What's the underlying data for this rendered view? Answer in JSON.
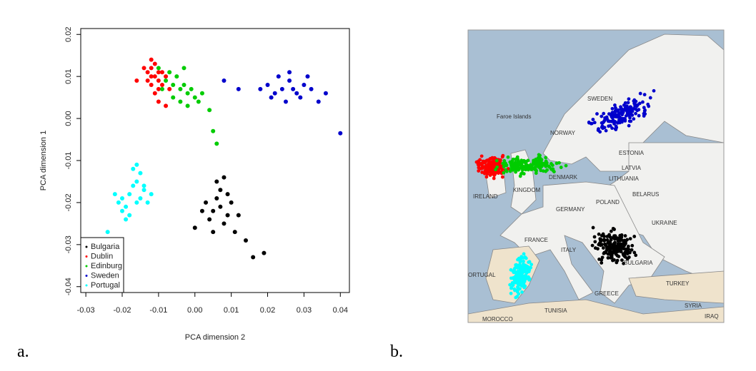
{
  "chart_data": {
    "type": "scatter",
    "xlabel": "PCA dimension 2",
    "ylabel": "PCA dimension 1",
    "xlim": [
      -0.0314,
      0.0425
    ],
    "ylim": [
      -0.0414,
      0.0214
    ],
    "xticks": [
      -0.03,
      -0.02,
      -0.01,
      {
        "value": 0,
        "label": "0.00"
      },
      0.01,
      0.02,
      0.03,
      0.04
    ],
    "yticks": [
      -0.04,
      -0.03,
      -0.02,
      -0.01,
      {
        "value": 0,
        "label": "0.00"
      },
      0.01,
      0.02
    ],
    "legend": "lower left",
    "series": [
      {
        "name": "Bulgaria",
        "color": "#000000",
        "x": [
          0.003,
          0.005,
          0.007,
          0.009,
          0.006,
          0.008,
          0.004,
          0.01,
          0.007,
          0.005,
          0.009,
          0.002,
          0.012,
          0.011,
          0.016,
          0.019,
          0.0,
          0.006,
          0.008,
          0.014
        ],
        "values": [
          -0.02,
          -0.022,
          -0.021,
          -0.023,
          -0.019,
          -0.025,
          -0.024,
          -0.02,
          -0.017,
          -0.027,
          -0.018,
          -0.022,
          -0.023,
          -0.027,
          -0.033,
          -0.032,
          -0.026,
          -0.015,
          -0.014,
          -0.029
        ]
      },
      {
        "name": "Dublin",
        "color": "#ff0000",
        "x": [
          -0.013,
          -0.012,
          -0.011,
          -0.01,
          -0.009,
          -0.012,
          -0.011,
          -0.01,
          -0.008,
          -0.013,
          -0.014,
          -0.012,
          -0.009,
          -0.011,
          -0.01,
          -0.007,
          -0.012,
          -0.01,
          -0.008,
          -0.016
        ],
        "values": [
          0.011,
          0.012,
          0.01,
          0.009,
          0.011,
          0.008,
          0.013,
          0.007,
          0.01,
          0.009,
          0.012,
          0.014,
          0.008,
          0.006,
          0.011,
          0.007,
          0.01,
          0.004,
          0.003,
          0.009
        ]
      },
      {
        "name": "Edinburg",
        "color": "#00cc00",
        "x": [
          -0.008,
          -0.006,
          -0.004,
          -0.002,
          0.0,
          -0.007,
          -0.005,
          -0.003,
          -0.001,
          0.001,
          -0.009,
          -0.006,
          -0.004,
          -0.002,
          0.002,
          0.004,
          -0.003,
          0.005,
          0.006,
          -0.01
        ],
        "values": [
          0.009,
          0.008,
          0.007,
          0.006,
          0.005,
          0.011,
          0.01,
          0.008,
          0.007,
          0.004,
          0.007,
          0.005,
          0.004,
          0.003,
          0.006,
          0.002,
          0.012,
          -0.003,
          -0.006,
          0.012
        ]
      },
      {
        "name": "Sweden",
        "color": "#0000cc",
        "x": [
          0.018,
          0.02,
          0.022,
          0.024,
          0.026,
          0.028,
          0.03,
          0.032,
          0.021,
          0.023,
          0.025,
          0.027,
          0.029,
          0.031,
          0.034,
          0.036,
          0.012,
          0.008,
          0.04,
          0.026
        ],
        "values": [
          0.007,
          0.008,
          0.006,
          0.007,
          0.009,
          0.006,
          0.008,
          0.007,
          0.005,
          0.01,
          0.004,
          0.007,
          0.005,
          0.01,
          0.004,
          0.006,
          0.007,
          0.009,
          -0.0035,
          0.011
        ]
      },
      {
        "name": "Portugal",
        "color": "#00ffff",
        "x": [
          -0.02,
          -0.018,
          -0.016,
          -0.014,
          -0.019,
          -0.017,
          -0.015,
          -0.021,
          -0.018,
          -0.016,
          -0.013,
          -0.022,
          -0.017,
          -0.015,
          -0.019,
          -0.024,
          -0.012,
          -0.016,
          -0.02,
          -0.014
        ],
        "values": [
          -0.019,
          -0.018,
          -0.02,
          -0.017,
          -0.021,
          -0.016,
          -0.019,
          -0.02,
          -0.023,
          -0.015,
          -0.02,
          -0.018,
          -0.012,
          -0.013,
          -0.024,
          -0.027,
          -0.018,
          -0.011,
          -0.022,
          -0.016
        ]
      }
    ]
  },
  "panels": {
    "a": "a.",
    "b": "b."
  },
  "map": {
    "labels": [
      "Faroe Islands",
      "SWEDEN",
      "NORWAY",
      "ESTONIA",
      "LATVIA",
      "LITHUANIA",
      "DENMARK",
      "IRELAND",
      "KINGDOM",
      "BELARUS",
      "POLAND",
      "GERMANY",
      "UKRAINE",
      "FRANCE",
      "ITALY",
      "BULGARIA",
      "ORTUGAL",
      "GREECE",
      "TURKEY",
      "TUNISIA",
      "SYRIA",
      "IRAQ",
      "MOROCCO"
    ]
  }
}
